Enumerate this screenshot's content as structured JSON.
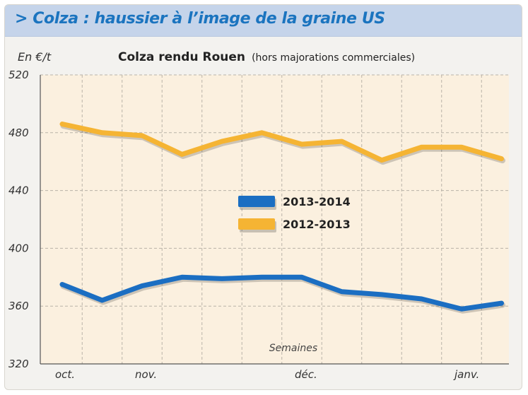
{
  "header": {
    "title": "> Colza : haussier à l’image de la graine US"
  },
  "chart_data": {
    "type": "line",
    "title": "Colza rendu Rouen",
    "subtitle": "(hors majorations commerciales)",
    "ylabel": "En €/t",
    "xlabel": "Semaines",
    "ylim": [
      320,
      520
    ],
    "yticks": [
      520,
      480,
      440,
      400,
      360,
      320
    ],
    "x_month_labels": [
      {
        "label": "oct.",
        "index": 0
      },
      {
        "label": "nov.",
        "index": 2
      },
      {
        "label": "déc.",
        "index": 6
      },
      {
        "label": "janv.",
        "index": 10
      }
    ],
    "grid": true,
    "legend_placement": "center-left",
    "series": [
      {
        "name": "2013-2014",
        "color": "#1b6ec2",
        "values": [
          375,
          364,
          374,
          380,
          379,
          380,
          380,
          370,
          368,
          365,
          358,
          362
        ]
      },
      {
        "name": "2012-2013",
        "color": "#f5b433",
        "values": [
          486,
          480,
          478,
          465,
          474,
          480,
          472,
          474,
          461,
          470,
          470,
          462
        ]
      }
    ]
  }
}
